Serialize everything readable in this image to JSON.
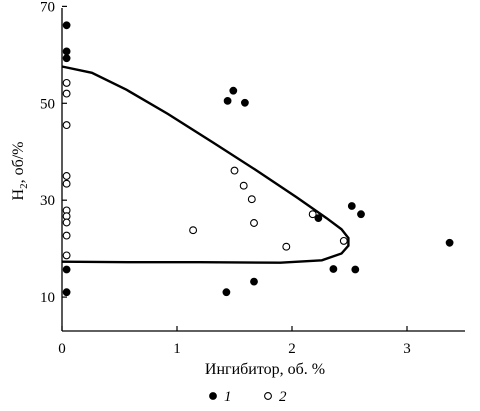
{
  "chart_data": {
    "type": "scatter",
    "xlabel": "Ингибитор, об. %",
    "ylabel_main": "H",
    "ylabel_sub": "2",
    "ylabel_rest": ", об/%",
    "xlim": [
      0,
      3.4
    ],
    "ylim": [
      3,
      72
    ],
    "x_ticks": [
      0,
      1,
      2,
      3
    ],
    "y_ticks": [
      10,
      30,
      50,
      70
    ],
    "x_tick_labels": [
      "0",
      "1",
      "2",
      "3"
    ],
    "y_tick_labels": [
      "10",
      "30",
      "50",
      "70"
    ],
    "series": [
      {
        "name": "1",
        "marker": "filled",
        "points": [
          [
            0.04,
            66.1
          ],
          [
            0.04,
            60.7
          ],
          [
            0.04,
            59.3
          ],
          [
            0.04,
            15.7
          ],
          [
            0.04,
            11.0
          ],
          [
            1.44,
            50.5
          ],
          [
            1.49,
            52.6
          ],
          [
            1.59,
            50.1
          ],
          [
            1.43,
            11.0
          ],
          [
            1.67,
            13.2
          ],
          [
            2.23,
            26.3
          ],
          [
            2.36,
            15.8
          ],
          [
            2.52,
            28.8
          ],
          [
            2.55,
            15.7
          ],
          [
            2.6,
            27.1
          ],
          [
            3.37,
            21.2
          ]
        ]
      },
      {
        "name": "2",
        "marker": "open",
        "points": [
          [
            0.04,
            54.2
          ],
          [
            0.04,
            52.0
          ],
          [
            0.04,
            45.5
          ],
          [
            0.04,
            35.0
          ],
          [
            0.04,
            33.4
          ],
          [
            0.04,
            27.9
          ],
          [
            0.04,
            26.7
          ],
          [
            0.04,
            25.4
          ],
          [
            0.04,
            22.7
          ],
          [
            0.04,
            18.6
          ],
          [
            1.14,
            23.8
          ],
          [
            1.5,
            36.1
          ],
          [
            1.58,
            33.0
          ],
          [
            1.65,
            30.2
          ],
          [
            1.67,
            25.3
          ],
          [
            1.95,
            20.4
          ],
          [
            2.18,
            27.1
          ],
          [
            2.45,
            21.6
          ]
        ]
      }
    ],
    "boundary_curve": [
      [
        0.0,
        57.6
      ],
      [
        0.26,
        56.3
      ],
      [
        0.56,
        52.8
      ],
      [
        0.92,
        47.8
      ],
      [
        1.32,
        41.8
      ],
      [
        1.7,
        36.0
      ],
      [
        2.04,
        30.6
      ],
      [
        2.3,
        26.3
      ],
      [
        2.43,
        24.0
      ],
      [
        2.49,
        22.2
      ],
      [
        2.49,
        20.6
      ],
      [
        2.43,
        19.0
      ],
      [
        2.26,
        17.6
      ],
      [
        1.9,
        17.1
      ],
      [
        1.2,
        17.2
      ],
      [
        0.6,
        17.2
      ],
      [
        0.0,
        17.3
      ]
    ],
    "legend": [
      "1",
      "2"
    ]
  }
}
